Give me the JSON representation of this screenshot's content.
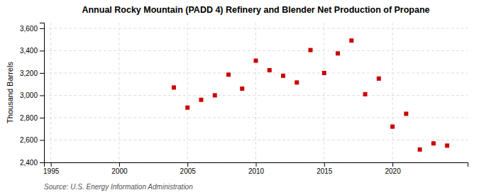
{
  "chart_data": {
    "type": "scatter",
    "title": "Annual Rocky Mountain (PADD 4) Refinery and Blender Net Production of Propane",
    "y_label": "Thousand Barrels",
    "source": "Source: U.S. Energy Information Administration",
    "x": [
      2004,
      2005,
      2006,
      2007,
      2008,
      2009,
      2010,
      2011,
      2012,
      2013,
      2014,
      2015,
      2016,
      2017,
      2018,
      2019,
      2020,
      2021,
      2022,
      2023,
      2024
    ],
    "values": [
      3070,
      2890,
      2960,
      3000,
      3185,
      3060,
      3310,
      3225,
      3175,
      3115,
      3405,
      3200,
      3375,
      3490,
      3010,
      3150,
      2720,
      2835,
      2515,
      2570,
      2550
    ],
    "color": "#cc0000",
    "marker": "square",
    "xlim": [
      1994.5,
      2025.5
    ],
    "ylim": [
      2400,
      3650
    ],
    "xticks": [
      1995,
      2000,
      2005,
      2010,
      2015,
      2020
    ],
    "yticks": [
      {
        "value": 2400,
        "label": "2,400"
      },
      {
        "value": 2600,
        "label": "2,600"
      },
      {
        "value": 2800,
        "label": "2,800"
      },
      {
        "value": 3000,
        "label": "3,000"
      },
      {
        "value": 3200,
        "label": "3,200"
      },
      {
        "value": 3400,
        "label": "3,400"
      },
      {
        "value": 3600,
        "label": "3,600"
      }
    ],
    "grid": true
  }
}
